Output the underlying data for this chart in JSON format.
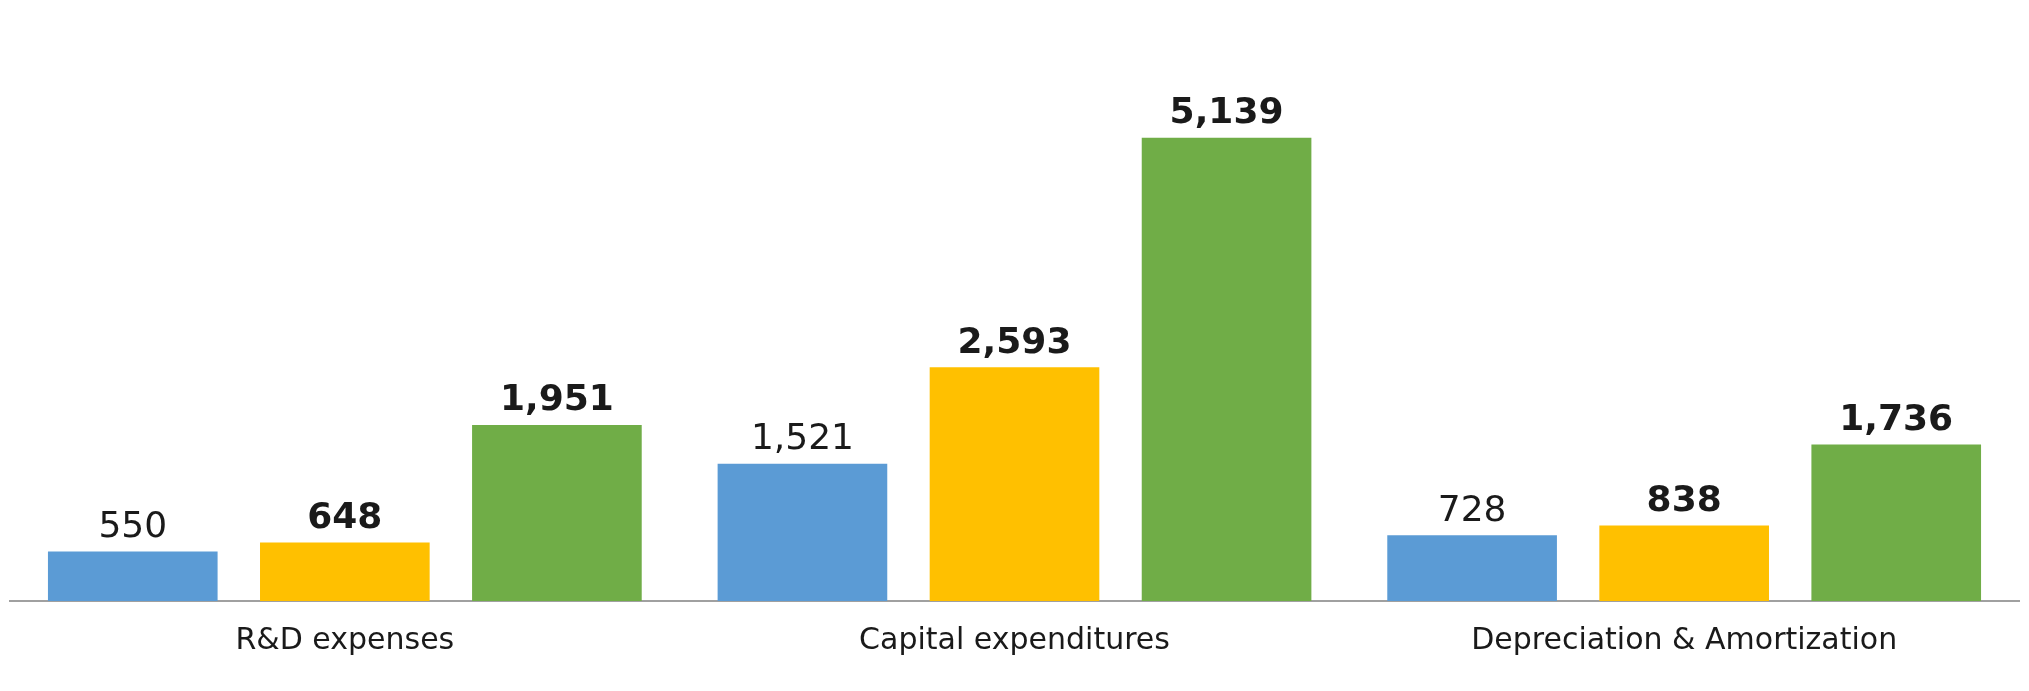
{
  "chart_data": {
    "type": "bar",
    "categories": [
      "R&D expenses",
      "Capital expenditures",
      "Depreciation & Amortization"
    ],
    "series": [
      {
        "color": "#5b9bd5",
        "values": [
          550,
          1521,
          728
        ],
        "value_labels": [
          "550",
          "1,521",
          "728"
        ]
      },
      {
        "color": "#ffc000",
        "values": [
          648,
          2593,
          838
        ],
        "value_labels": [
          "648",
          "2,593",
          "838"
        ]
      },
      {
        "color": "#70ad47",
        "values": [
          1951,
          5139,
          1736
        ],
        "value_labels": [
          "1,951",
          "5,139",
          "1,736"
        ]
      }
    ],
    "grid": false,
    "legend": false
  }
}
